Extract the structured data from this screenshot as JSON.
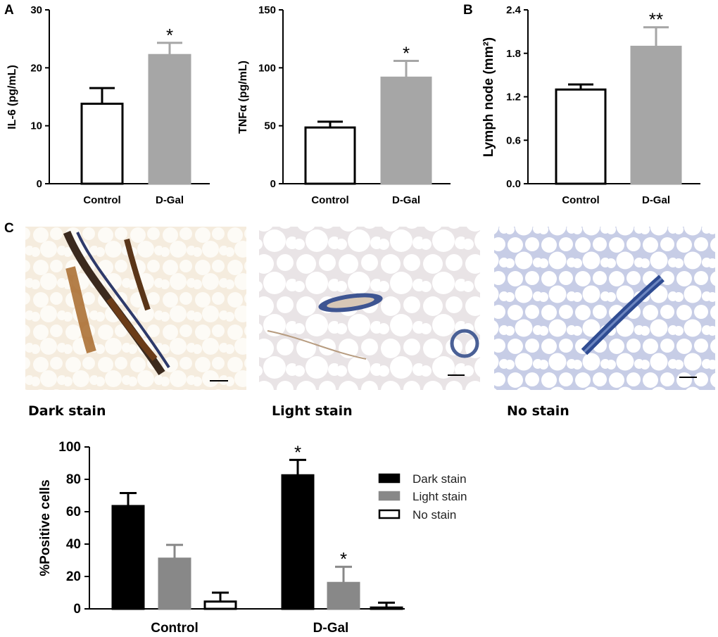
{
  "panels": {
    "A": "A",
    "B": "B",
    "C": "C"
  },
  "colors": {
    "control_fill": "#ffffff",
    "dgal_fill": "#a6a6a6",
    "dark": "#000000",
    "light": "#888888",
    "none": "#ffffff",
    "axis": "#000000"
  },
  "chart_data": [
    {
      "id": "il6",
      "type": "bar",
      "ylabel": "IL-6 (pg/mL)",
      "categories": [
        "Control",
        "D-Gal"
      ],
      "values": [
        13.8,
        22.2
      ],
      "errors": [
        2.7,
        2.1
      ],
      "ylim": [
        0,
        30
      ],
      "yticks": [
        "0",
        "10",
        "20",
        "30"
      ],
      "significance": [
        "",
        "*"
      ]
    },
    {
      "id": "tnfa",
      "type": "bar",
      "ylabel": "TNFα (pg/mL)",
      "categories": [
        "Control",
        "D-Gal"
      ],
      "values": [
        48.5,
        91.5
      ],
      "errors": [
        5,
        14.5
      ],
      "ylim": [
        0,
        150
      ],
      "yticks": [
        "0",
        "50",
        "100",
        "150"
      ],
      "significance": [
        "",
        "*"
      ]
    },
    {
      "id": "lymph",
      "type": "bar",
      "ylabel": "Lymph node (mm²)",
      "categories": [
        "Control",
        "D-Gal"
      ],
      "values": [
        1.3,
        1.89
      ],
      "errors": [
        0.07,
        0.27
      ],
      "ylim": [
        0,
        2.4
      ],
      "yticks": [
        "0.0",
        "0.6",
        "1.2",
        "1.8",
        "2.4"
      ],
      "significance": [
        "",
        "**"
      ]
    },
    {
      "id": "positive",
      "type": "bar",
      "ylabel": "%Positive cells",
      "categories": [
        "Control",
        "D-Gal"
      ],
      "series": [
        {
          "name": "Dark stain",
          "values": [
            63.5,
            82.5
          ],
          "errors": [
            8,
            9.5
          ],
          "significance": [
            "",
            "*"
          ]
        },
        {
          "name": "Light stain",
          "values": [
            31,
            16
          ],
          "errors": [
            8.5,
            10
          ],
          "significance": [
            "",
            "*"
          ]
        },
        {
          "name": "No stain",
          "values": [
            4.5,
            0.8
          ],
          "errors": [
            5.5,
            3
          ],
          "significance": [
            "",
            ""
          ]
        }
      ],
      "ylim": [
        0,
        100
      ],
      "yticks": [
        "0",
        "20",
        "40",
        "60",
        "80",
        "100"
      ],
      "legend": "right"
    }
  ],
  "images": {
    "dark": {
      "caption": "Dark stain"
    },
    "light": {
      "caption": "Light stain"
    },
    "none": {
      "caption": "No stain"
    }
  }
}
